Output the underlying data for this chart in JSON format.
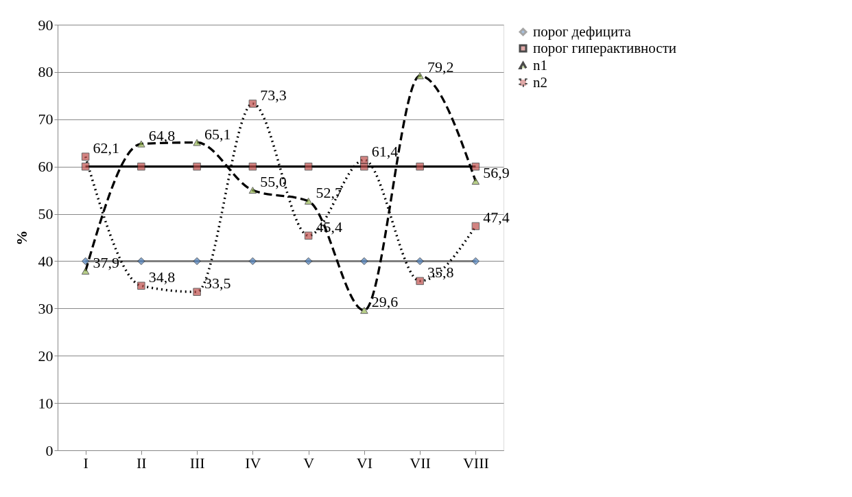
{
  "chart_data": {
    "type": "line",
    "ylabel": "%",
    "categories": [
      "I",
      "II",
      "III",
      "IV",
      "V",
      "VI",
      "VII",
      "VIII"
    ],
    "ylim": [
      0,
      90
    ],
    "yticks": [
      0,
      10,
      20,
      30,
      40,
      50,
      60,
      70,
      80,
      90
    ],
    "grid": "y",
    "legend": "right",
    "series": [
      {
        "name": "порог дефицита",
        "color": "#7f7f7f",
        "marker": "diamond",
        "line_style": "solid",
        "values": [
          40,
          40,
          40,
          40,
          40,
          40,
          40,
          40
        ]
      },
      {
        "name": "порог гиперактивности",
        "color": "#000000",
        "marker": "square",
        "line_style": "solid",
        "values": [
          60,
          60,
          60,
          60,
          60,
          60,
          60,
          60
        ]
      },
      {
        "name": "n1",
        "color": "#000000",
        "marker": "triangle",
        "line_style": "dashed",
        "values": [
          37.9,
          64.8,
          65.1,
          55.0,
          52.7,
          29.6,
          79.2,
          56.9
        ],
        "value_labels": [
          "37,9",
          "64,8",
          "65,1",
          "55,0",
          "52,7",
          "29,6",
          "79,2",
          "56,9"
        ]
      },
      {
        "name": "n2",
        "color": "#000000",
        "marker": "square",
        "line_style": "dotted",
        "values": [
          62.1,
          34.8,
          33.5,
          73.3,
          45.4,
          61.4,
          35.8,
          47.4
        ],
        "value_labels": [
          "62,1",
          "34,8",
          "33,5",
          "73,3",
          "45,4",
          "61,4",
          "35,8",
          "47,4"
        ]
      }
    ]
  }
}
